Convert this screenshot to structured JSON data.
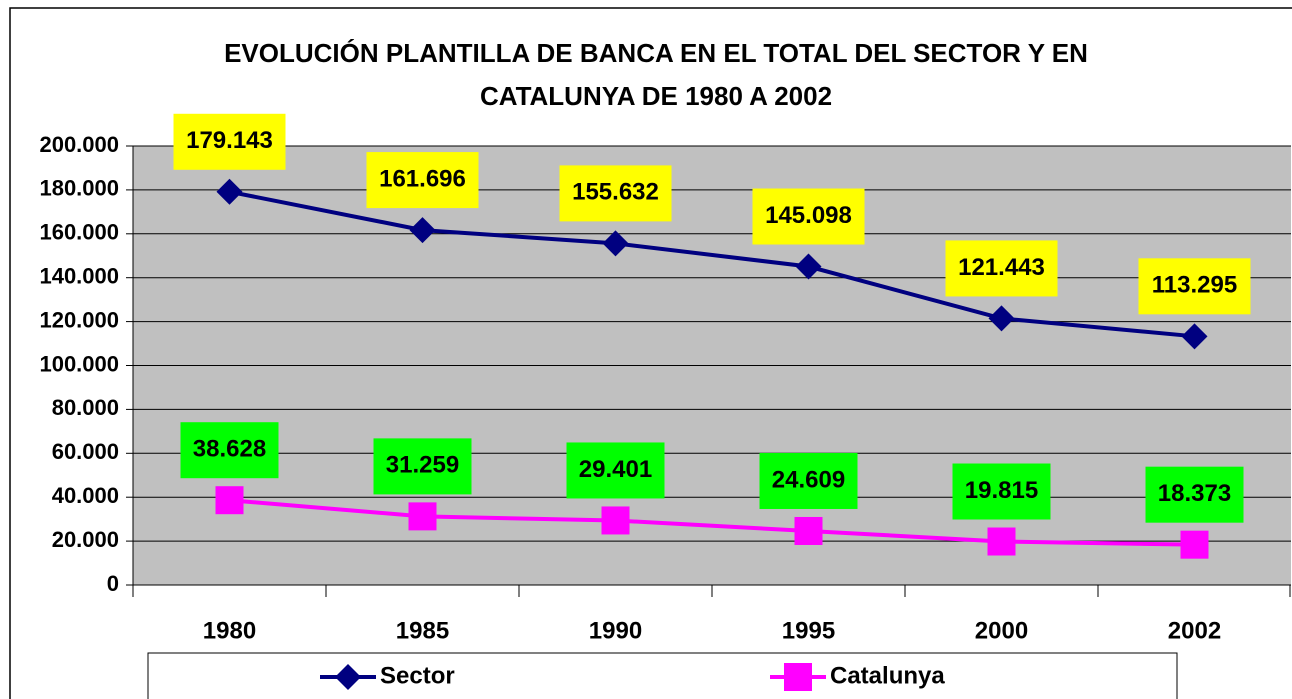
{
  "chart_data": {
    "type": "line",
    "title": [
      "EVOLUCIÓN PLANTILLA DE BANCA EN EL TOTAL DEL SECTOR Y EN",
      "CATALUNYA DE 1980 A 2002"
    ],
    "categories": [
      "1980",
      "1985",
      "1990",
      "1995",
      "2000",
      "2002"
    ],
    "series": [
      {
        "name": "Sector",
        "color": "#000080",
        "marker": "diamond",
        "label_color": "#ffff00",
        "values": [
          179143,
          161696,
          155632,
          145098,
          121443,
          113295
        ],
        "value_labels": [
          "179.143",
          "161.696",
          "155.632",
          "145.098",
          "121.443",
          "113.295"
        ]
      },
      {
        "name": "Catalunya",
        "color": "#ff00ff",
        "marker": "square",
        "label_color": "#00ff00",
        "values": [
          38628,
          31259,
          29401,
          24609,
          19815,
          18373
        ],
        "value_labels": [
          "38.628",
          "31.259",
          "29.401",
          "24.609",
          "19.815",
          "18.373"
        ]
      }
    ],
    "ylim": [
      0,
      200000
    ],
    "yticks": [
      0,
      {
        "value": 20000,
        "label": "20.000"
      },
      {
        "value": 40000,
        "label": "40.000"
      },
      {
        "value": 60000,
        "label": "60.000"
      },
      {
        "value": 80000,
        "label": "80.000"
      },
      {
        "value": 100000,
        "label": "100.000"
      },
      {
        "value": 120000,
        "label": "120.000"
      },
      {
        "value": 140000,
        "label": "140.000"
      },
      {
        "value": 160000,
        "label": "160.000"
      },
      {
        "value": 180000,
        "label": "180.000"
      },
      {
        "value": 200000,
        "label": "200.000"
      }
    ],
    "grid": true,
    "plot_background": "#c0c0c0",
    "legend": "bottom"
  }
}
